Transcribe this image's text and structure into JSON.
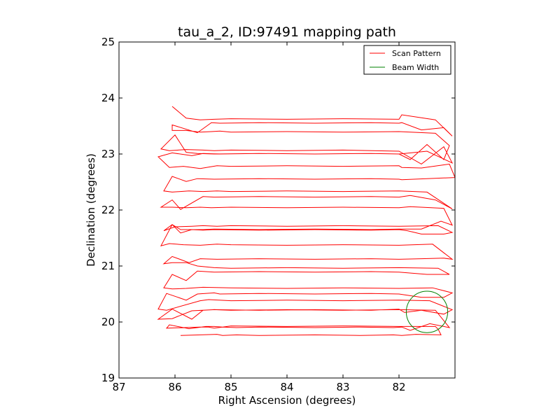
{
  "chart_data": {
    "type": "line",
    "title": "tau_a_2, ID:97491 mapping path",
    "xlabel": "Right Ascension (degrees)",
    "ylabel": "Declination (degrees)",
    "xlim": [
      87.0,
      81.0
    ],
    "ylim": [
      19.0,
      25.0
    ],
    "x_ticks": [
      87,
      86,
      85,
      84,
      83,
      82
    ],
    "y_ticks": [
      19,
      20,
      21,
      22,
      23,
      24,
      25
    ],
    "grid": false,
    "legend_position": "top-right",
    "legend": [
      "Scan Pattern",
      "Beam Width"
    ],
    "series": [
      {
        "name": "Scan Pattern",
        "color": "#ff0000",
        "kind": "raster scan",
        "x": [
          85.9,
          85.25,
          85.15,
          84.9,
          84.5,
          83.5,
          82.7,
          82.1,
          81.95,
          81.7,
          81.25,
          81.3,
          81.35,
          82.0,
          83.0,
          84.0,
          85.0,
          85.15,
          85.3,
          85.45,
          85.75,
          86.1,
          86.15,
          85.55,
          85.4,
          85.3,
          85.15,
          84.9,
          84.5,
          83.5,
          82.7,
          82.1,
          81.95,
          81.8,
          81.45,
          81.1,
          81.35,
          82.0,
          83.0,
          84.0,
          85.0,
          85.3,
          85.7,
          86.05,
          86.3,
          86.05,
          85.7,
          85.5,
          85.3,
          84.5,
          83.5,
          82.5,
          82.0,
          81.9,
          81.6,
          81.2,
          81.05,
          81.45,
          82.0,
          83.0,
          84.0,
          85.0,
          85.4,
          85.55,
          86.15,
          86.3,
          86.15,
          85.8,
          85.6,
          85.3,
          85.2,
          84.5,
          83.5,
          82.5,
          82.0,
          81.6,
          81.2,
          81.05,
          81.4,
          82.0,
          83.0,
          84.0,
          85.0,
          85.5,
          85.8,
          86.05,
          86.2,
          86.05,
          85.8,
          85.6,
          85.3,
          84.5,
          83.5,
          82.5,
          82.0,
          81.5,
          81.1,
          81.3,
          82.0,
          83.0,
          84.0,
          85.0,
          85.3,
          85.6,
          85.8,
          86.05,
          86.2,
          86.05,
          85.75,
          85.55,
          85.25,
          84.5,
          83.5,
          82.5,
          82.0,
          81.6,
          81.2,
          81.05,
          81.4,
          82.0,
          83.0,
          84.0,
          85.0,
          85.25,
          85.55,
          85.85,
          86.1,
          86.25,
          86.05,
          85.9,
          85.7,
          85.5,
          85.3,
          84.5,
          83.5,
          82.5,
          82.0,
          81.85,
          81.6,
          81.2,
          81.05,
          81.3,
          82.0,
          83.0,
          84.0,
          85.0,
          85.25,
          85.5,
          85.7,
          86.0,
          86.2,
          86.05,
          85.9,
          85.5,
          85.3,
          84.5,
          83.5,
          82.5,
          82.0,
          81.6,
          81.25,
          81.05,
          81.2,
          81.8,
          82.0,
          83.0,
          84.0,
          85.0,
          85.35,
          85.55,
          85.8,
          86.05,
          86.25,
          86.05,
          85.9,
          85.5,
          85.3,
          84.5,
          83.5,
          82.5,
          82.0,
          81.8,
          81.35,
          81.05,
          81.5,
          82.0,
          83.0,
          84.0,
          85.0,
          85.25,
          85.5,
          85.75,
          86.05,
          86.2,
          86.05,
          85.8,
          85.6,
          85.3,
          84.5,
          83.5,
          82.5,
          82.0,
          81.95,
          81.25,
          81.0,
          81.1,
          81.6,
          81.95,
          82.0,
          83.0,
          84.0,
          85.0,
          85.25,
          85.55,
          85.85,
          86.1,
          86.3,
          86.05,
          85.7,
          85.5,
          85.2,
          84.5,
          83.5,
          82.5,
          82.0,
          81.9,
          81.5,
          81.05,
          81.2,
          81.6,
          82.0,
          83.0,
          84.0,
          85.0,
          85.3,
          85.5,
          85.8,
          86.1,
          86.25,
          86.0,
          85.8,
          85.6,
          85.3,
          84.5,
          83.5,
          82.5,
          82.0,
          81.8,
          81.5,
          81.2,
          81.1,
          81.35,
          82.0,
          83.0,
          84.0,
          85.0,
          85.2,
          85.35,
          85.55,
          85.8,
          86.05,
          86.05,
          85.6,
          85.35,
          85.2,
          84.5,
          83.5,
          82.5,
          82.0,
          81.95,
          81.6,
          81.2,
          81.05,
          81.35,
          81.95,
          82.0,
          83.0,
          84.0,
          85.0,
          85.3,
          85.55,
          85.8,
          86.05
        ],
        "y": [
          19.76,
          19.78,
          19.76,
          19.77,
          19.76,
          19.77,
          19.76,
          19.77,
          19.76,
          19.78,
          19.77,
          19.87,
          19.92,
          19.92,
          19.93,
          19.92,
          19.93,
          19.91,
          19.92,
          19.92,
          19.88,
          19.95,
          19.89,
          19.91,
          19.91,
          19.89,
          19.91,
          19.9,
          19.91,
          19.9,
          19.91,
          19.9,
          19.91,
          19.85,
          19.97,
          19.9,
          20.21,
          20.22,
          20.21,
          20.22,
          20.21,
          20.22,
          20.2,
          20.06,
          20.05,
          20.23,
          20.05,
          20.21,
          20.22,
          20.21,
          20.22,
          20.21,
          20.23,
          20.17,
          20.21,
          20.14,
          20.22,
          20.38,
          20.39,
          20.38,
          20.39,
          20.38,
          20.4,
          20.38,
          20.21,
          20.23,
          20.51,
          20.39,
          20.5,
          20.52,
          20.5,
          20.51,
          20.5,
          20.51,
          20.5,
          20.44,
          20.44,
          20.52,
          20.61,
          20.6,
          20.61,
          20.6,
          20.61,
          20.62,
          20.6,
          20.59,
          20.61,
          20.85,
          20.74,
          20.91,
          20.89,
          20.9,
          20.89,
          20.9,
          20.89,
          20.85,
          20.85,
          20.96,
          20.97,
          20.96,
          20.97,
          20.96,
          20.97,
          21.0,
          21.06,
          21.06,
          21.04,
          21.17,
          21.06,
          21.13,
          21.12,
          21.13,
          21.12,
          21.13,
          21.12,
          21.13,
          21.14,
          21.12,
          21.39,
          21.37,
          21.38,
          21.37,
          21.38,
          21.39,
          21.37,
          21.38,
          21.4,
          21.36,
          21.74,
          21.59,
          21.65,
          21.64,
          21.65,
          21.64,
          21.65,
          21.64,
          21.65,
          21.63,
          21.57,
          21.57,
          21.6,
          21.72,
          21.71,
          21.72,
          21.71,
          21.72,
          21.71,
          21.72,
          21.71,
          21.7,
          21.63,
          21.74,
          21.65,
          21.65,
          21.66,
          21.65,
          21.66,
          21.65,
          21.66,
          21.66,
          21.8,
          21.73,
          22.03,
          22.06,
          22.04,
          22.05,
          22.04,
          22.05,
          22.04,
          22.05,
          22.04,
          22.05,
          22.05,
          22.18,
          22.01,
          22.24,
          22.23,
          22.24,
          22.23,
          22.24,
          22.23,
          22.26,
          22.18,
          22.02,
          22.32,
          22.34,
          22.33,
          22.34,
          22.33,
          22.34,
          22.33,
          22.34,
          22.32,
          22.34,
          22.6,
          22.51,
          22.56,
          22.55,
          22.56,
          22.55,
          22.56,
          22.55,
          22.54,
          22.57,
          22.58,
          22.82,
          22.75,
          22.76,
          22.79,
          22.78,
          22.79,
          22.78,
          22.79,
          22.74,
          22.78,
          22.76,
          22.95,
          23.02,
          22.97,
          23.01,
          23.0,
          23.01,
          23.0,
          23.01,
          23.0,
          23.01,
          23.05,
          22.84,
          23.13,
          22.82,
          23.05,
          23.07,
          23.06,
          23.07,
          23.06,
          23.07,
          23.08,
          23.06,
          23.09,
          23.34,
          23.03,
          23.01,
          23.0,
          23.01,
          23.0,
          23.01,
          23.0,
          22.9,
          23.17,
          22.9,
          23.15,
          23.37,
          23.4,
          23.39,
          23.4,
          23.39,
          23.41,
          23.4,
          23.39,
          23.42,
          23.42,
          23.52,
          23.38,
          23.56,
          23.55,
          23.56,
          23.55,
          23.56,
          23.55,
          23.56,
          23.43,
          23.47,
          23.32,
          23.61,
          23.7,
          23.62,
          23.63,
          23.62,
          23.63,
          23.62,
          23.61,
          23.64,
          23.85
        ]
      },
      {
        "name": "Beam Width",
        "color": "#008000",
        "kind": "circle",
        "center": [
          81.5,
          20.18
        ],
        "radius": 0.37
      }
    ]
  },
  "legend_styles": {
    "Scan Pattern": "#ff0000",
    "Beam Width": "#008000"
  }
}
